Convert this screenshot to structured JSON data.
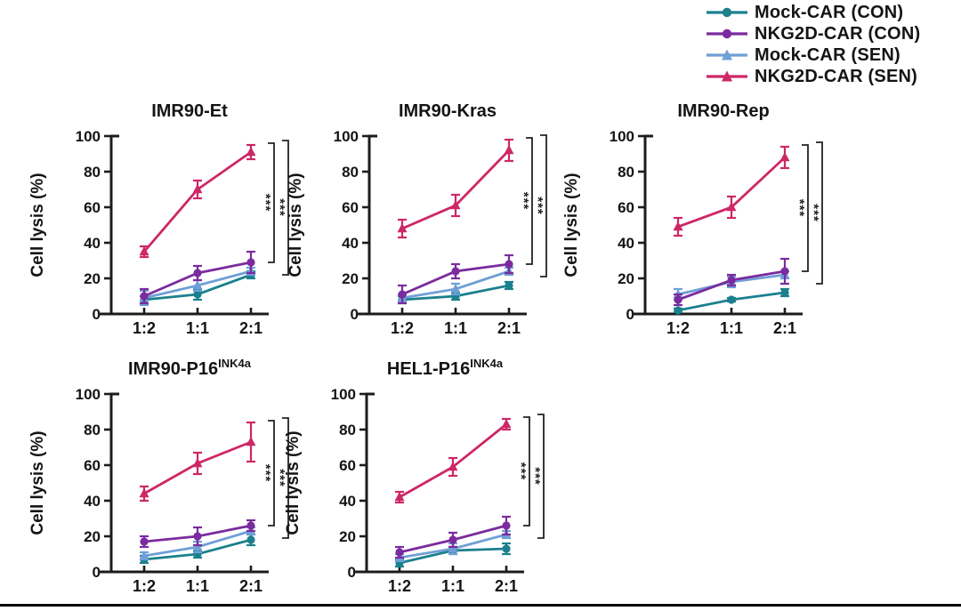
{
  "page": {
    "background": "#ffffff",
    "bottom_rule_color": "#000000",
    "text_color": "#141414",
    "axis_color": "#1c1c1c"
  },
  "legend": {
    "items": [
      {
        "label": "Mock-CAR (CON)",
        "color": "#1b808e",
        "marker": "circle"
      },
      {
        "label": "NKG2D-CAR (CON)",
        "color": "#7b2b9e",
        "marker": "circle"
      },
      {
        "label": "Mock-CAR (SEN)",
        "color": "#6f9fd6",
        "marker": "triangle"
      },
      {
        "label": "NKG2D-CAR (SEN)",
        "color": "#cd2766",
        "marker": "triangle"
      }
    ]
  },
  "chart_data": [
    {
      "type": "line",
      "title": "IMR90-Et",
      "title_sup": "",
      "ylabel": "Cell lysis (%)",
      "xlabel": "",
      "ylim": [
        0,
        100
      ],
      "yticks": [
        0,
        20,
        40,
        60,
        80,
        100
      ],
      "categories": [
        "1:2",
        "1:1",
        "2:1"
      ],
      "series": [
        {
          "name": "Mock-CAR (CON)",
          "values": [
            8,
            11,
            22
          ],
          "errors": [
            2,
            3,
            2
          ]
        },
        {
          "name": "NKG2D-CAR (CON)",
          "values": [
            10,
            23,
            29
          ],
          "errors": [
            4,
            4,
            6
          ]
        },
        {
          "name": "Mock-CAR (SEN)",
          "values": [
            9,
            16,
            24
          ],
          "errors": [
            4,
            3,
            2
          ]
        },
        {
          "name": "NKG2D-CAR (SEN)",
          "values": [
            35,
            70,
            91
          ],
          "errors": [
            3,
            5,
            4
          ]
        }
      ],
      "significance": [
        "***",
        "***"
      ]
    },
    {
      "type": "line",
      "title": "IMR90-Kras",
      "title_sup": "",
      "ylabel": "Cell lysis (%)",
      "xlabel": "",
      "ylim": [
        0,
        100
      ],
      "yticks": [
        0,
        20,
        40,
        60,
        80,
        100
      ],
      "categories": [
        "1:2",
        "1:1",
        "2:1"
      ],
      "series": [
        {
          "name": "Mock-CAR (CON)",
          "values": [
            8,
            10,
            16
          ],
          "errors": [
            2,
            2,
            2
          ]
        },
        {
          "name": "NKG2D-CAR (CON)",
          "values": [
            11,
            24,
            28
          ],
          "errors": [
            5,
            4,
            5
          ]
        },
        {
          "name": "Mock-CAR (SEN)",
          "values": [
            9,
            14,
            24
          ],
          "errors": [
            2,
            3,
            2
          ]
        },
        {
          "name": "NKG2D-CAR (SEN)",
          "values": [
            48,
            61,
            92
          ],
          "errors": [
            5,
            6,
            6
          ]
        }
      ],
      "significance": [
        "***",
        "***"
      ]
    },
    {
      "type": "line",
      "title": "IMR90-Rep",
      "title_sup": "",
      "ylabel": "Cell lysis (%)",
      "xlabel": "",
      "ylim": [
        0,
        100
      ],
      "yticks": [
        0,
        20,
        40,
        60,
        80,
        100
      ],
      "categories": [
        "1:2",
        "1:1",
        "2:1"
      ],
      "series": [
        {
          "name": "Mock-CAR (CON)",
          "values": [
            2,
            8,
            12
          ],
          "errors": [
            1,
            1,
            2
          ]
        },
        {
          "name": "NKG2D-CAR (CON)",
          "values": [
            8,
            19,
            24
          ],
          "errors": [
            3,
            3,
            7
          ]
        },
        {
          "name": "Mock-CAR (SEN)",
          "values": [
            11,
            18,
            22
          ],
          "errors": [
            3,
            3,
            2
          ]
        },
        {
          "name": "NKG2D-CAR (SEN)",
          "values": [
            49,
            60,
            88
          ],
          "errors": [
            5,
            6,
            6
          ]
        }
      ],
      "significance": [
        "***",
        "***"
      ]
    },
    {
      "type": "line",
      "title": "IMR90-P16",
      "title_sup": "INK4a",
      "ylabel": "Cell lysis (%)",
      "xlabel": "",
      "ylim": [
        0,
        100
      ],
      "yticks": [
        0,
        20,
        40,
        60,
        80,
        100
      ],
      "categories": [
        "1:2",
        "1:1",
        "2:1"
      ],
      "series": [
        {
          "name": "Mock-CAR (CON)",
          "values": [
            7,
            10,
            18
          ],
          "errors": [
            2,
            2,
            3
          ]
        },
        {
          "name": "NKG2D-CAR (CON)",
          "values": [
            17,
            20,
            26
          ],
          "errors": [
            3,
            5,
            3
          ]
        },
        {
          "name": "Mock-CAR (SEN)",
          "values": [
            9,
            14,
            23
          ],
          "errors": [
            2,
            3,
            2
          ]
        },
        {
          "name": "NKG2D-CAR (SEN)",
          "values": [
            44,
            61,
            73
          ],
          "errors": [
            4,
            6,
            11
          ]
        }
      ],
      "significance": [
        "***",
        "***"
      ]
    },
    {
      "type": "line",
      "title": "HEL1-P16",
      "title_sup": "INK4a",
      "ylabel": "Cell lysis (%)",
      "xlabel": "",
      "ylim": [
        0,
        100
      ],
      "yticks": [
        0,
        20,
        40,
        60,
        80,
        100
      ],
      "categories": [
        "1:2",
        "1:1",
        "2:1"
      ],
      "series": [
        {
          "name": "Mock-CAR (CON)",
          "values": [
            5,
            12,
            13
          ],
          "errors": [
            2,
            2,
            3
          ]
        },
        {
          "name": "NKG2D-CAR (CON)",
          "values": [
            11,
            18,
            26
          ],
          "errors": [
            3,
            4,
            5
          ]
        },
        {
          "name": "Mock-CAR (SEN)",
          "values": [
            8,
            13,
            21
          ],
          "errors": [
            2,
            3,
            2
          ]
        },
        {
          "name": "NKG2D-CAR (SEN)",
          "values": [
            42,
            59,
            83
          ],
          "errors": [
            3,
            5,
            3
          ]
        }
      ],
      "significance": [
        "***",
        "***"
      ]
    }
  ]
}
